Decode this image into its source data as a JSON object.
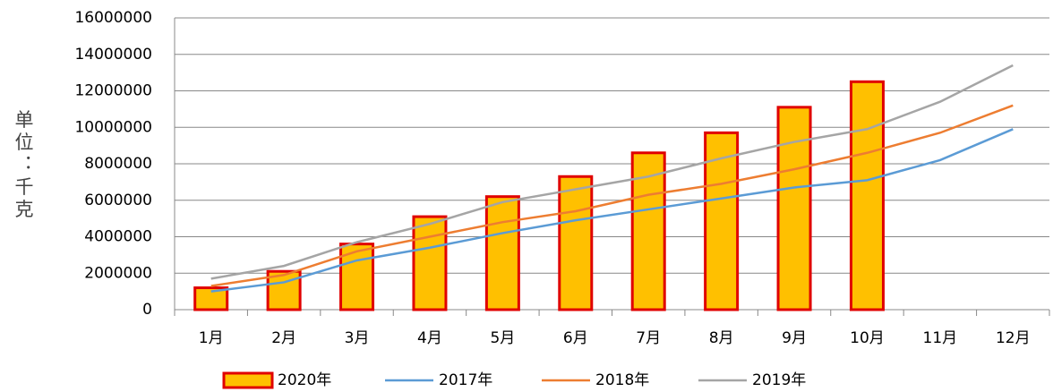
{
  "chart_data": {
    "type": "bar",
    "y_label": "单位：千克",
    "categories": [
      "1月",
      "2月",
      "3月",
      "4月",
      "5月",
      "6月",
      "7月",
      "8月",
      "9月",
      "10月",
      "11月",
      "12月"
    ],
    "series": [
      {
        "name": "2020年",
        "type": "bar",
        "color": "#FFC000",
        "edge_color": "#E00000",
        "values": [
          1200000,
          2100000,
          3600000,
          5100000,
          6200000,
          7300000,
          8600000,
          9700000,
          11100000,
          12500000,
          null,
          null
        ]
      },
      {
        "name": "2017年",
        "type": "line",
        "color": "#5B9BD5",
        "values": [
          1000000,
          1500000,
          2700000,
          3400000,
          4200000,
          4900000,
          5500000,
          6100000,
          6700000,
          7100000,
          8200000,
          9900000
        ]
      },
      {
        "name": "2018年",
        "type": "line",
        "color": "#ED7D31",
        "values": [
          1300000,
          1900000,
          3200000,
          4000000,
          4800000,
          5400000,
          6300000,
          6900000,
          7700000,
          8600000,
          9700000,
          11200000
        ]
      },
      {
        "name": "2019年",
        "type": "line",
        "color": "#A5A5A5",
        "values": [
          1700000,
          2400000,
          3700000,
          4700000,
          5900000,
          6600000,
          7300000,
          8300000,
          9200000,
          9900000,
          11400000,
          13400000
        ]
      }
    ],
    "ylim": [
      0,
      16000000
    ],
    "yticks": [
      0,
      2000000,
      4000000,
      6000000,
      8000000,
      10000000,
      12000000,
      14000000,
      16000000
    ],
    "grid": true,
    "legend": "bottom"
  }
}
